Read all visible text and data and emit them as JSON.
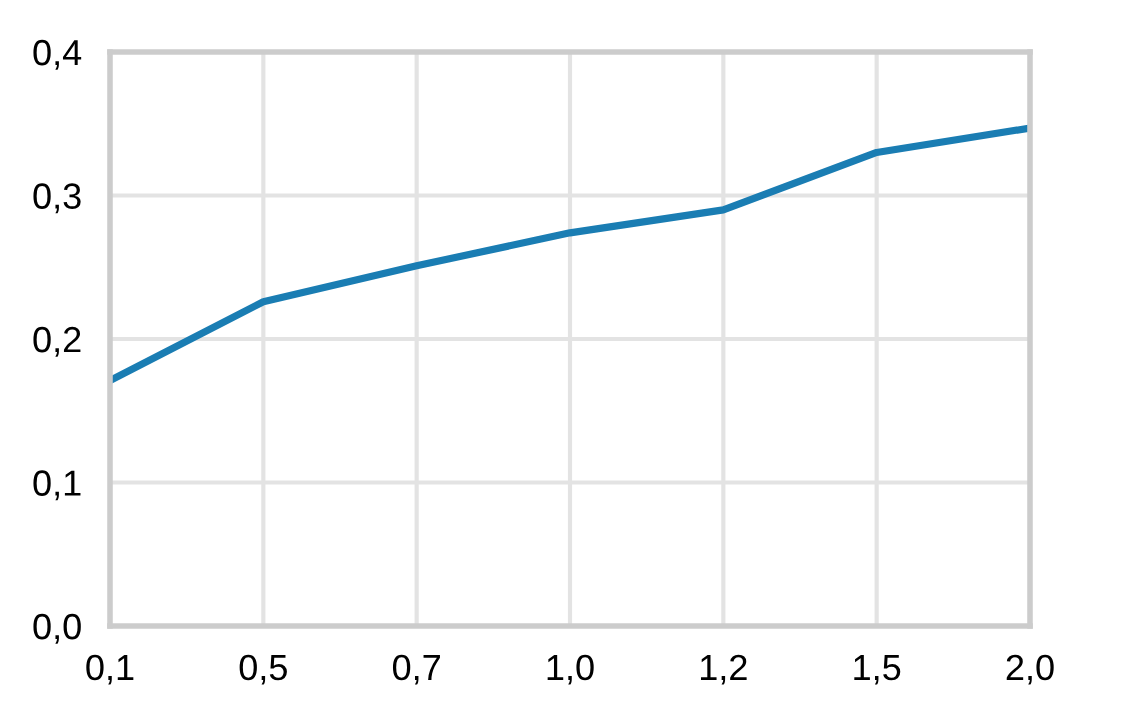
{
  "chart_data": {
    "type": "line",
    "categories": [
      "0,1",
      "0,5",
      "0,7",
      "1,0",
      "1,2",
      "1,5",
      "2,0"
    ],
    "series": [
      {
        "color": "#1a7db3",
        "values": [
          0.171,
          0.226,
          0.251,
          0.274,
          0.29,
          0.33,
          0.347
        ]
      }
    ],
    "ylim": [
      0,
      0.4
    ],
    "yticks": [
      {
        "value": 0,
        "label": "0,0"
      },
      {
        "value": 0.1,
        "label": "0,1"
      },
      {
        "value": 0.2,
        "label": "0,2"
      },
      {
        "value": 0.3,
        "label": "0,3"
      },
      {
        "value": 0.4,
        "label": "0,4"
      }
    ],
    "grid": true,
    "line_style": "solid"
  }
}
